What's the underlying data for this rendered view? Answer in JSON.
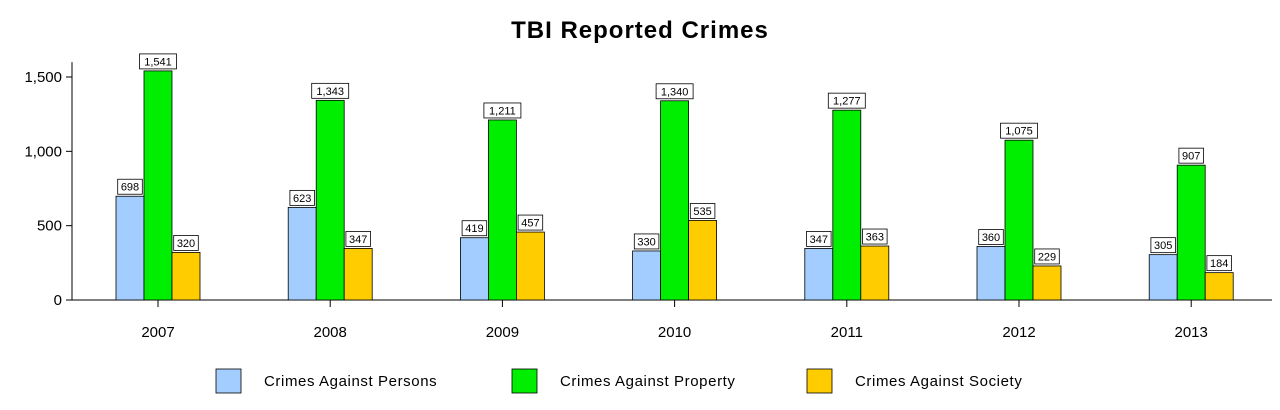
{
  "chart_data": {
    "type": "bar",
    "title": "TBI Reported Crimes",
    "xlabel": "",
    "ylabel": "",
    "categories": [
      "2007",
      "2008",
      "2009",
      "2010",
      "2011",
      "2012",
      "2013"
    ],
    "ylim": [
      0,
      1600
    ],
    "yticks": [
      0,
      500,
      1000,
      1500
    ],
    "ytick_labels": [
      "0",
      "500",
      "1,000",
      "1,500"
    ],
    "grid": false,
    "legend_position": "bottom",
    "series": [
      {
        "name": "Crimes Against Persons",
        "color": "#a3cdff",
        "values": [
          698,
          623,
          419,
          330,
          347,
          360,
          305
        ],
        "labels": [
          "698",
          "623",
          "419",
          "330",
          "347",
          "360",
          "305"
        ]
      },
      {
        "name": "Crimes Against Property",
        "color": "#00ee00",
        "values": [
          1541,
          1343,
          1211,
          1340,
          1277,
          1075,
          907
        ],
        "labels": [
          "1,541",
          "1,343",
          "1,211",
          "1,340",
          "1,277",
          "1,075",
          "907"
        ]
      },
      {
        "name": "Crimes Against Society",
        "color": "#ffcc00",
        "values": [
          320,
          347,
          457,
          535,
          363,
          229,
          184
        ],
        "labels": [
          "320",
          "347",
          "457",
          "535",
          "363",
          "229",
          "184"
        ]
      }
    ]
  }
}
